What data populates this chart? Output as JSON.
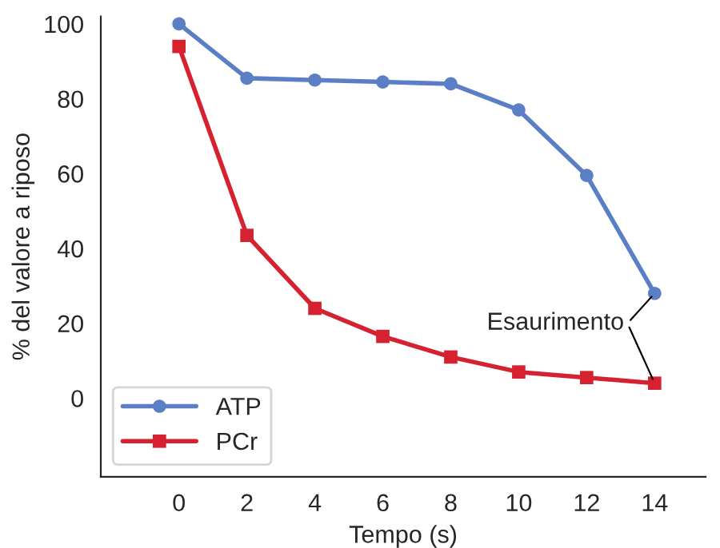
{
  "chart_data": {
    "type": "line",
    "xlabel": "Tempo (s)",
    "ylabel": "% del valore a riposo",
    "x": [
      0,
      2,
      4,
      6,
      8,
      10,
      12,
      14
    ],
    "series": [
      {
        "name": "ATP",
        "color": "#5b7fc4",
        "marker": "circle",
        "values": [
          100,
          85.5,
          85,
          84.5,
          84,
          77,
          59.5,
          28
        ]
      },
      {
        "name": "PCr",
        "color": "#d62230",
        "marker": "square",
        "values": [
          94,
          43.5,
          24,
          16.5,
          11,
          7,
          5.5,
          4
        ]
      }
    ],
    "xlim": [
      -2.3,
      15.5
    ],
    "ylim": [
      -21,
      102
    ],
    "xticks": [
      0,
      2,
      4,
      6,
      8,
      10,
      12,
      14
    ],
    "yticks": [
      0,
      20,
      40,
      60,
      80,
      100
    ],
    "grid": false,
    "legend": "bottom left",
    "line_style": "solid",
    "annotations": [
      {
        "text": "Esaurimento",
        "x": 14,
        "y": 28
      }
    ]
  }
}
